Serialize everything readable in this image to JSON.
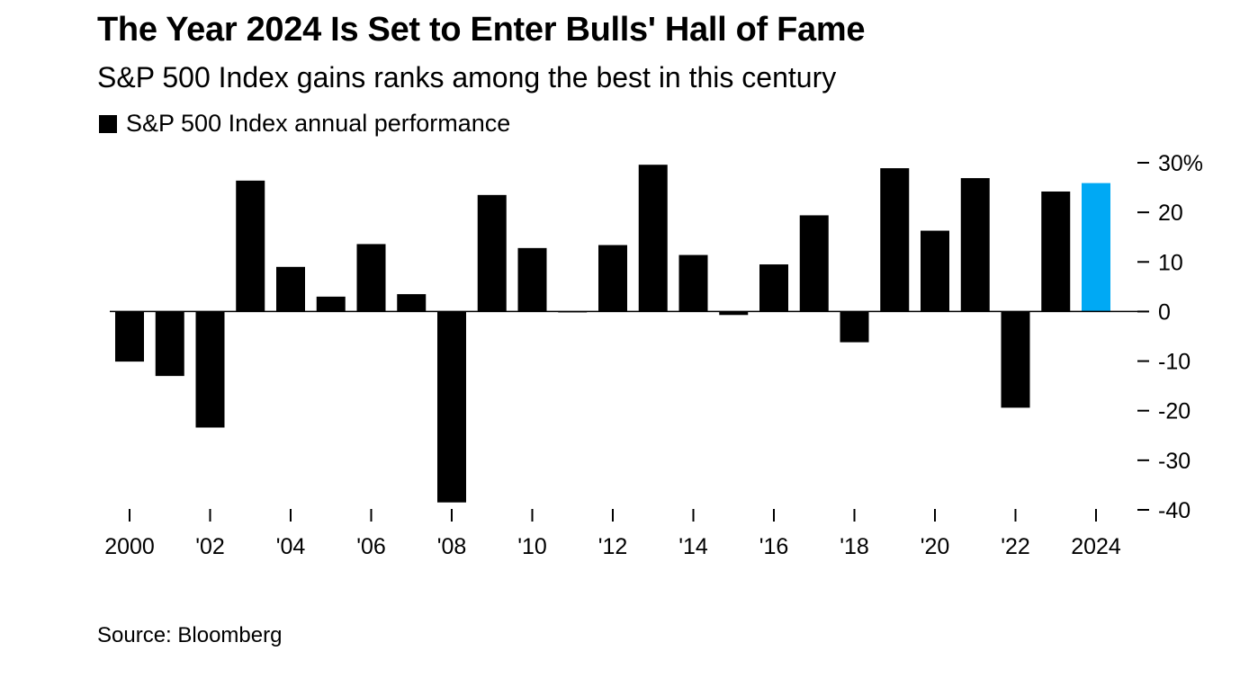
{
  "title": "The Year 2024 Is Set to Enter Bulls' Hall of Fame",
  "subtitle": "S&P 500 Index gains ranks among the best in this century",
  "source": "Source: Bloomberg",
  "colors": {
    "default_bar": "#000000",
    "highlight_bar": "#00a9f4"
  },
  "chart_data": {
    "type": "bar",
    "legend": {
      "label": "S&P 500 Index annual performance",
      "placement": "top-left"
    },
    "categories": [
      "2000",
      "2001",
      "2002",
      "2003",
      "2004",
      "2005",
      "2006",
      "2007",
      "2008",
      "2009",
      "2010",
      "2011",
      "2012",
      "2013",
      "2014",
      "2015",
      "2016",
      "2017",
      "2018",
      "2019",
      "2020",
      "2021",
      "2022",
      "2023",
      "2024"
    ],
    "series": [
      {
        "name": "S&P 500 Index annual performance",
        "values": [
          -10.1,
          -13.0,
          -23.4,
          26.4,
          9.0,
          3.0,
          13.6,
          3.5,
          -38.5,
          23.5,
          12.8,
          0.0,
          13.4,
          29.6,
          11.4,
          -0.7,
          9.5,
          19.4,
          -6.2,
          28.9,
          16.3,
          26.9,
          -19.4,
          24.2,
          25.9
        ]
      }
    ],
    "highlight_category": "2024",
    "x_tick_labels": [
      {
        "category": "2000",
        "label": "2000"
      },
      {
        "category": "2002",
        "label": "'02"
      },
      {
        "category": "2004",
        "label": "'04"
      },
      {
        "category": "2006",
        "label": "'06"
      },
      {
        "category": "2008",
        "label": "'08"
      },
      {
        "category": "2010",
        "label": "'10"
      },
      {
        "category": "2012",
        "label": "'12"
      },
      {
        "category": "2014",
        "label": "'14"
      },
      {
        "category": "2016",
        "label": "'16"
      },
      {
        "category": "2018",
        "label": "'18"
      },
      {
        "category": "2020",
        "label": "'20"
      },
      {
        "category": "2022",
        "label": "'22"
      },
      {
        "category": "2024",
        "label": "2024"
      }
    ],
    "y_ticks": [
      {
        "value": 30,
        "label": "30%"
      },
      {
        "value": 20,
        "label": "20"
      },
      {
        "value": 10,
        "label": "10"
      },
      {
        "value": 0,
        "label": "0"
      },
      {
        "value": -10,
        "label": "-10"
      },
      {
        "value": -20,
        "label": "-20"
      },
      {
        "value": -30,
        "label": "-30"
      },
      {
        "value": -40,
        "label": "-40"
      }
    ],
    "ylim": [
      -40,
      30
    ],
    "y_axis_side": "right",
    "grid": false
  }
}
